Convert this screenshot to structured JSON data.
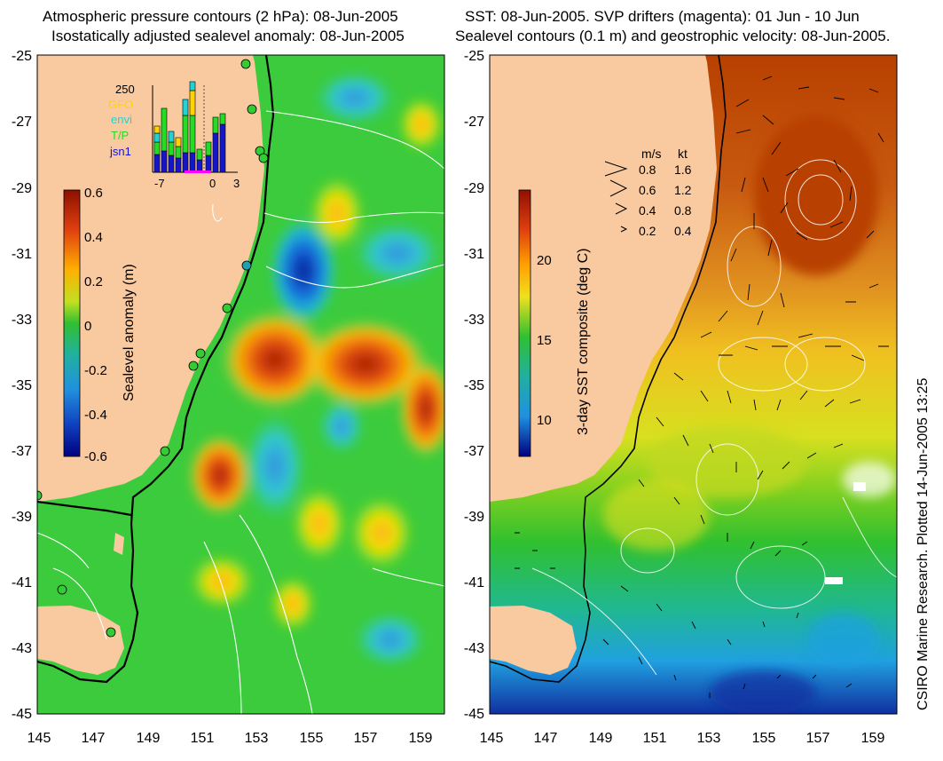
{
  "left_panel": {
    "title_line1": "Atmospheric pressure contours (2 hPa): 08-Jun-2005",
    "title_line2": "Isostatically adjusted sealevel anomaly: 08-Jun-2005",
    "colorbar": {
      "label": "Sealevel anomaly (m)",
      "ticks": [
        "0.6",
        "0.4",
        "0.2",
        "0",
        "-0.2",
        "-0.4",
        "-0.6"
      ],
      "range": [
        -0.6,
        0.6
      ]
    },
    "inset": {
      "ymax_label": "250",
      "legend": [
        {
          "name": "GFO",
          "color": "#ffd400"
        },
        {
          "name": "envi",
          "color": "#22d3d3"
        },
        {
          "name": "T/P",
          "color": "#22dd22"
        },
        {
          "name": "jsn1",
          "color": "#1515cc"
        }
      ],
      "x_ticks": [
        "-7",
        "0",
        "3"
      ]
    }
  },
  "right_panel": {
    "title_line1": "SST: 08-Jun-2005. SVP drifters (magenta): 01 Jun - 10 Jun",
    "title_line2": "Sealevel contours (0.1 m) and geostrophic velocity: 08-Jun-2005.",
    "colorbar": {
      "label": "3-day SST composite (deg C)",
      "ticks": [
        "20",
        "15",
        "10"
      ]
    },
    "speed_key": {
      "header_ms": "m/s",
      "header_kt": "kt",
      "rows": [
        {
          "ms": "0.8",
          "kt": "1.6"
        },
        {
          "ms": "0.6",
          "kt": "1.2"
        },
        {
          "ms": "0.4",
          "kt": "0.8"
        },
        {
          "ms": "0.2",
          "kt": "0.4"
        }
      ]
    }
  },
  "axes": {
    "lat_labels": [
      "-25",
      "-27",
      "-29",
      "-31",
      "-33",
      "-35",
      "-37",
      "-39",
      "-41",
      "-43",
      "-45"
    ],
    "lon_labels": [
      "145",
      "147",
      "149",
      "151",
      "153",
      "155",
      "157",
      "159"
    ]
  },
  "credit": "CSIRO Marine Research. Plotted 14-Jun-2005 13:25",
  "colors": {
    "land": "#f9c9a0",
    "ocean_green": "#3ccb3c",
    "anomaly_high": "#a82800",
    "anomaly_low": "#0a1a8c",
    "tide_gauge": "#33cc33"
  }
}
